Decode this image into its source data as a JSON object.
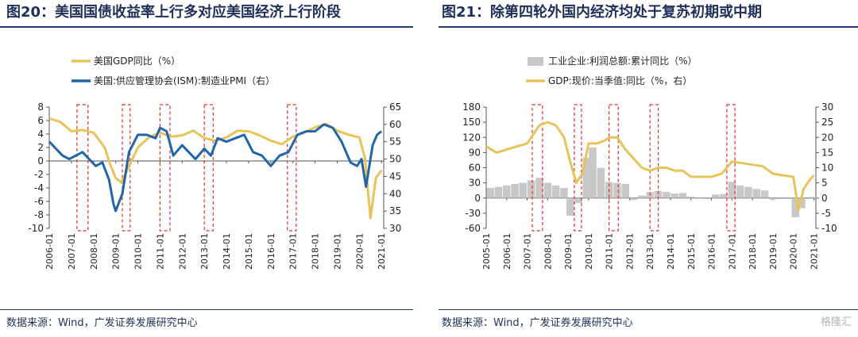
{
  "panel1": {
    "title": "图20：美国国债收益率上行多对应美国经济上行阶段",
    "source": "数据来源：Wind，广发证券发展研究中心"
  },
  "panel2": {
    "title": "图21：除第四轮外国内经济均处于复苏初期或中期",
    "source": "数据来源：Wind，广发证券发展研究中心"
  },
  "watermark": "格隆汇",
  "colors": {
    "gold": "#e6c45a",
    "blue": "#2166a8",
    "gray": "#c8c8c8",
    "red": "#e03030"
  },
  "chart_data": [
    {
      "type": "line",
      "title": "图20：美国国债收益率上行多对应美国经济上行阶段",
      "x_tick_labels": [
        "2006-01",
        "2007-01",
        "2008-01",
        "2009-01",
        "2010-01",
        "2011-01",
        "2012-01",
        "2013-01",
        "2014-01",
        "2015-01",
        "2016-01",
        "2017-01",
        "2018-01",
        "2019-01",
        "2020-01",
        "2021-01"
      ],
      "left_axis": {
        "range": [
          -10,
          8
        ],
        "ticks": [
          8,
          6,
          4,
          2,
          0,
          -2,
          -4,
          -6,
          -8,
          -10
        ]
      },
      "right_axis": {
        "range": [
          30,
          65
        ],
        "ticks": [
          65,
          60,
          55,
          50,
          45,
          40,
          35,
          30
        ]
      },
      "series": [
        {
          "name": "美国GDP同比（%）",
          "axis": "left",
          "color": "#e6c45a",
          "x": [
            2006.0,
            2006.5,
            2007.0,
            2007.5,
            2008.0,
            2008.5,
            2008.75,
            2009.0,
            2009.25,
            2009.5,
            2010.0,
            2010.5,
            2011.0,
            2011.5,
            2012.0,
            2012.5,
            2013.0,
            2013.5,
            2014.0,
            2014.5,
            2015.0,
            2015.5,
            2016.0,
            2016.5,
            2017.0,
            2017.5,
            2018.0,
            2018.5,
            2019.0,
            2019.5,
            2020.0,
            2020.25,
            2020.5,
            2020.75,
            2021.0
          ],
          "values": [
            6.3,
            5.8,
            4.4,
            4.6,
            4.2,
            2.0,
            -0.5,
            -2.5,
            -3.2,
            -1.5,
            2.0,
            3.5,
            4.2,
            3.6,
            3.8,
            4.5,
            3.4,
            3.0,
            3.5,
            4.5,
            4.4,
            3.8,
            3.0,
            2.5,
            3.6,
            4.2,
            5.0,
            5.5,
            4.5,
            3.9,
            3.5,
            0.5,
            -8.5,
            -2.5,
            -1.4
          ]
        },
        {
          "name": "美国:供应管理协会(ISM):制造业PMI（右）",
          "axis": "right",
          "color": "#2166a8",
          "x": [
            2006.0,
            2006.3,
            2006.6,
            2006.9,
            2007.2,
            2007.5,
            2007.8,
            2008.1,
            2008.4,
            2008.7,
            2008.9,
            2009.0,
            2009.3,
            2009.6,
            2010.0,
            2010.4,
            2010.8,
            2011.0,
            2011.3,
            2011.6,
            2012.0,
            2012.3,
            2012.6,
            2013.0,
            2013.3,
            2013.6,
            2014.0,
            2014.4,
            2014.8,
            2015.2,
            2015.6,
            2016.0,
            2016.4,
            2016.8,
            2017.2,
            2017.6,
            2018.0,
            2018.4,
            2018.8,
            2019.2,
            2019.6,
            2019.9,
            2020.1,
            2020.3,
            2020.6,
            2020.8,
            2021.0
          ],
          "values": [
            55,
            53,
            51,
            50,
            51,
            52,
            50,
            48,
            49,
            44,
            37,
            35,
            40,
            52,
            57,
            57,
            56,
            59,
            58,
            51,
            54,
            52,
            50,
            53,
            51,
            56,
            55,
            56,
            57,
            52,
            51,
            48,
            51,
            52,
            57,
            58,
            58,
            60,
            59,
            55,
            49,
            48,
            50,
            42,
            54,
            57,
            58
          ]
        }
      ],
      "highlight_periods": [
        [
          2007.25,
          2007.75
        ],
        [
          2009.3,
          2009.65
        ],
        [
          2011.0,
          2011.45
        ],
        [
          2013.0,
          2013.4
        ],
        [
          2016.75,
          2017.15
        ]
      ]
    },
    {
      "type": "bar+line",
      "title": "图21：除第四轮外国内经济均处于复苏初期或中期",
      "x_tick_labels": [
        "2005-01",
        "2006-01",
        "2007-01",
        "2008-01",
        "2009-01",
        "2010-01",
        "2011-01",
        "2012-01",
        "2013-01",
        "2014-01",
        "2015-01",
        "2016-01",
        "2017-01",
        "2018-01",
        "2019-01",
        "2020-01",
        "2021-01"
      ],
      "left_axis": {
        "range": [
          -60,
          180
        ],
        "ticks": [
          180,
          150,
          120,
          90,
          60,
          30,
          0,
          -30,
          -60
        ]
      },
      "right_axis": {
        "range": [
          -10,
          30
        ],
        "ticks": [
          30,
          25,
          20,
          15,
          10,
          5,
          0,
          -5,
          -10
        ]
      },
      "series": [
        {
          "name": "工业企业:利润总额:累计同比（%）",
          "type": "bar",
          "axis": "left",
          "color": "#c8c8c8",
          "x": [
            2005.2,
            2005.6,
            2006.0,
            2006.4,
            2006.8,
            2007.2,
            2007.6,
            2008.0,
            2008.4,
            2008.8,
            2009.1,
            2009.5,
            2009.9,
            2010.2,
            2010.6,
            2011.0,
            2011.4,
            2011.8,
            2012.2,
            2012.6,
            2013.0,
            2013.4,
            2013.8,
            2014.2,
            2014.6,
            2015.0,
            2015.4,
            2015.8,
            2016.2,
            2016.6,
            2017.0,
            2017.4,
            2017.8,
            2018.2,
            2018.6,
            2019.0,
            2019.4,
            2019.8,
            2020.1,
            2020.4,
            2020.8,
            2021.0
          ],
          "values": [
            20,
            22,
            25,
            28,
            30,
            35,
            40,
            30,
            25,
            20,
            -35,
            -10,
            80,
            100,
            60,
            32,
            30,
            28,
            -4,
            5,
            12,
            14,
            12,
            9,
            10,
            3,
            -1,
            -2,
            7,
            8,
            32,
            25,
            22,
            18,
            15,
            -3,
            -2,
            -2,
            -38,
            -20,
            0,
            2
          ]
        },
        {
          "name": "GDP:现价:当季值:同比（%，右）",
          "type": "line",
          "axis": "right",
          "color": "#e6c45a",
          "x": [
            2005.0,
            2005.5,
            2006.0,
            2006.5,
            2007.0,
            2007.3,
            2007.6,
            2008.0,
            2008.4,
            2008.8,
            2009.1,
            2009.4,
            2009.7,
            2010.0,
            2010.4,
            2010.8,
            2011.0,
            2011.4,
            2011.8,
            2012.2,
            2012.6,
            2013.0,
            2013.4,
            2013.8,
            2014.2,
            2014.6,
            2015.0,
            2015.5,
            2016.0,
            2016.5,
            2017.0,
            2017.5,
            2018.0,
            2018.5,
            2019.0,
            2019.5,
            2020.0,
            2020.25,
            2020.5,
            2020.8,
            2021.0
          ],
          "values": [
            17,
            15,
            16,
            17,
            18,
            21,
            24,
            25,
            24,
            20,
            12,
            5,
            8,
            18,
            18,
            19,
            20,
            20,
            16,
            13,
            10,
            9,
            10,
            10,
            9,
            9,
            7,
            7,
            7,
            8,
            12,
            11.5,
            11,
            10.5,
            8,
            7.5,
            7,
            -4,
            3,
            6,
            7.5
          ]
        }
      ],
      "highlight_periods": [
        [
          2007.25,
          2007.75
        ],
        [
          2009.3,
          2009.65
        ],
        [
          2011.0,
          2011.45
        ],
        [
          2013.0,
          2013.4
        ],
        [
          2016.75,
          2017.15
        ]
      ]
    }
  ]
}
